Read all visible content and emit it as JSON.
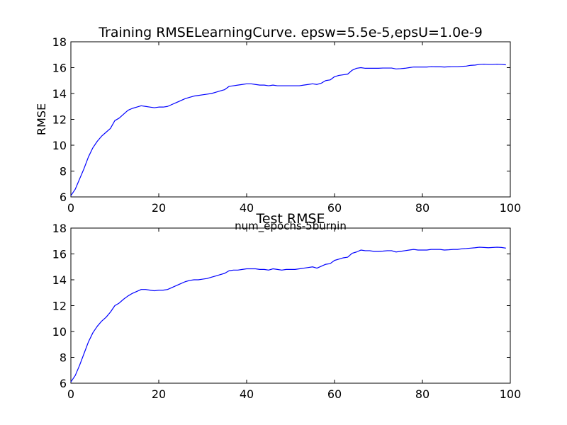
{
  "colors": {
    "line": "#0000ff",
    "axes": "#000000",
    "background": "#ffffff"
  },
  "chart_data": [
    {
      "type": "line",
      "title": "Training RMSELearningCurve. epsw=5.5e-5,epsU=1.0e-9",
      "xlabel": "num_epochs-5burnin",
      "ylabel": "RMSE",
      "xlim": [
        0,
        100
      ],
      "ylim": [
        6,
        18
      ],
      "xticks": [
        "0",
        "20",
        "40",
        "60",
        "80",
        "100"
      ],
      "yticks": [
        "6",
        "8",
        "10",
        "12",
        "14",
        "16",
        "18"
      ],
      "grid": false,
      "series": [
        {
          "x": [
            0,
            1,
            2,
            3,
            4,
            5,
            6,
            7,
            8,
            9,
            10,
            11,
            12,
            13,
            14,
            15,
            16,
            17,
            18,
            19,
            20,
            21,
            22,
            23,
            24,
            25,
            26,
            27,
            28,
            29,
            30,
            31,
            32,
            33,
            34,
            35,
            36,
            37,
            38,
            39,
            40,
            41,
            42,
            43,
            44,
            45,
            46,
            47,
            48,
            49,
            50,
            51,
            52,
            53,
            54,
            55,
            56,
            57,
            58,
            59,
            60,
            61,
            62,
            63,
            64,
            65,
            66,
            67,
            68,
            69,
            70,
            71,
            72,
            73,
            74,
            75,
            76,
            77,
            78,
            79,
            80,
            81,
            82,
            83,
            84,
            85,
            86,
            87,
            88,
            89,
            90,
            91,
            92,
            93,
            94,
            95,
            96,
            97,
            98,
            99
          ],
          "values": [
            6.1,
            6.6,
            7.4,
            8.2,
            9.1,
            9.8,
            10.3,
            10.7,
            11.0,
            11.3,
            11.9,
            12.1,
            12.4,
            12.7,
            12.85,
            12.95,
            13.05,
            13.0,
            12.95,
            12.9,
            12.95,
            12.95,
            13.0,
            13.15,
            13.3,
            13.45,
            13.6,
            13.7,
            13.8,
            13.85,
            13.9,
            13.95,
            14.0,
            14.1,
            14.2,
            14.3,
            14.55,
            14.6,
            14.65,
            14.7,
            14.75,
            14.75,
            14.7,
            14.65,
            14.65,
            14.6,
            14.65,
            14.6,
            14.6,
            14.6,
            14.6,
            14.6,
            14.6,
            14.65,
            14.7,
            14.75,
            14.7,
            14.8,
            15.0,
            15.05,
            15.3,
            15.4,
            15.45,
            15.5,
            15.8,
            15.95,
            16.0,
            15.95,
            15.95,
            15.95,
            15.95,
            15.97,
            15.97,
            15.97,
            15.9,
            15.92,
            15.95,
            16.0,
            16.05,
            16.05,
            16.05,
            16.05,
            16.08,
            16.07,
            16.07,
            16.05,
            16.07,
            16.08,
            16.08,
            16.1,
            16.12,
            16.18,
            16.2,
            16.25,
            16.27,
            16.25,
            16.25,
            16.27,
            16.25,
            16.22
          ]
        }
      ]
    },
    {
      "type": "line",
      "title": "Test RMSE",
      "xlabel": "",
      "ylabel": "",
      "xlim": [
        0,
        100
      ],
      "ylim": [
        6,
        18
      ],
      "xticks": [
        "0",
        "20",
        "40",
        "60",
        "80",
        "100"
      ],
      "yticks": [
        "6",
        "8",
        "10",
        "12",
        "14",
        "16",
        "18"
      ],
      "grid": false,
      "series": [
        {
          "x": [
            0,
            1,
            2,
            3,
            4,
            5,
            6,
            7,
            8,
            9,
            10,
            11,
            12,
            13,
            14,
            15,
            16,
            17,
            18,
            19,
            20,
            21,
            22,
            23,
            24,
            25,
            26,
            27,
            28,
            29,
            30,
            31,
            32,
            33,
            34,
            35,
            36,
            37,
            38,
            39,
            40,
            41,
            42,
            43,
            44,
            45,
            46,
            47,
            48,
            49,
            50,
            51,
            52,
            53,
            54,
            55,
            56,
            57,
            58,
            59,
            60,
            61,
            62,
            63,
            64,
            65,
            66,
            67,
            68,
            69,
            70,
            71,
            72,
            73,
            74,
            75,
            76,
            77,
            78,
            79,
            80,
            81,
            82,
            83,
            84,
            85,
            86,
            87,
            88,
            89,
            90,
            91,
            92,
            93,
            94,
            95,
            96,
            97,
            98,
            99
          ],
          "values": [
            6.1,
            6.6,
            7.4,
            8.3,
            9.2,
            9.9,
            10.4,
            10.8,
            11.1,
            11.5,
            12.0,
            12.2,
            12.5,
            12.75,
            12.95,
            13.1,
            13.25,
            13.25,
            13.2,
            13.15,
            13.2,
            13.2,
            13.25,
            13.4,
            13.55,
            13.7,
            13.85,
            13.95,
            14.0,
            14.0,
            14.05,
            14.1,
            14.2,
            14.3,
            14.4,
            14.5,
            14.7,
            14.75,
            14.75,
            14.8,
            14.85,
            14.85,
            14.85,
            14.8,
            14.8,
            14.75,
            14.85,
            14.8,
            14.75,
            14.8,
            14.8,
            14.8,
            14.85,
            14.9,
            14.95,
            15.0,
            14.9,
            15.05,
            15.2,
            15.25,
            15.5,
            15.6,
            15.7,
            15.75,
            16.05,
            16.15,
            16.3,
            16.25,
            16.25,
            16.2,
            16.2,
            16.22,
            16.25,
            16.25,
            16.15,
            16.2,
            16.25,
            16.3,
            16.35,
            16.3,
            16.3,
            16.3,
            16.35,
            16.35,
            16.35,
            16.3,
            16.32,
            16.35,
            16.35,
            16.4,
            16.42,
            16.45,
            16.48,
            16.52,
            16.5,
            16.48,
            16.5,
            16.52,
            16.5,
            16.45
          ]
        }
      ]
    }
  ]
}
